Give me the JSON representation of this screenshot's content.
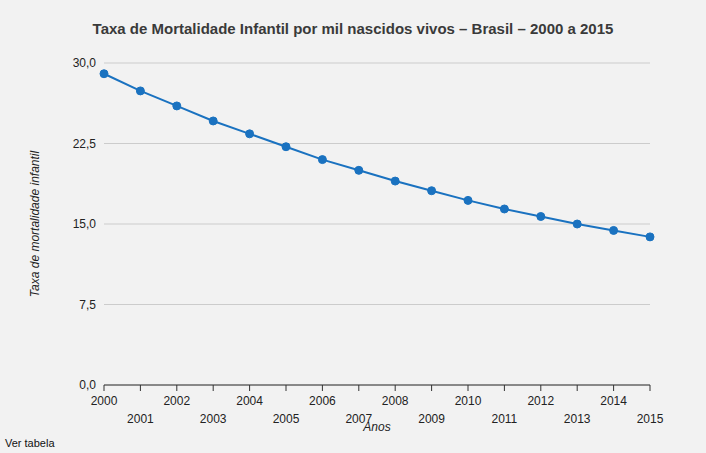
{
  "chart_data": {
    "type": "line",
    "title": "Taxa de Mortalidade Infantil por mil nascidos vivos – Brasil – 2000 a 2015",
    "x_label": "Anos",
    "y_label": "Taxa de mortalidade infantil",
    "annotation": "Ver tabela",
    "categories": [
      "2000",
      "2001",
      "2002",
      "2003",
      "2004",
      "2005",
      "2006",
      "2007",
      "2008",
      "2009",
      "2010",
      "2011",
      "2012",
      "2013",
      "2014",
      "2015"
    ],
    "values": [
      29.0,
      27.4,
      26.0,
      24.6,
      23.4,
      22.2,
      21.0,
      20.0,
      19.0,
      18.1,
      17.2,
      16.4,
      15.7,
      15.0,
      14.4,
      13.8
    ],
    "color": "#1a72c0",
    "marker": "circle",
    "ylim": [
      0,
      30
    ],
    "yticks": [
      {
        "value": 0,
        "label": "0,0"
      },
      {
        "value": 7.5,
        "label": "7,5"
      },
      {
        "value": 15,
        "label": "15,0"
      },
      {
        "value": 22.5,
        "label": "22,5"
      },
      {
        "value": 30,
        "label": "30,0"
      }
    ],
    "grid": true
  }
}
